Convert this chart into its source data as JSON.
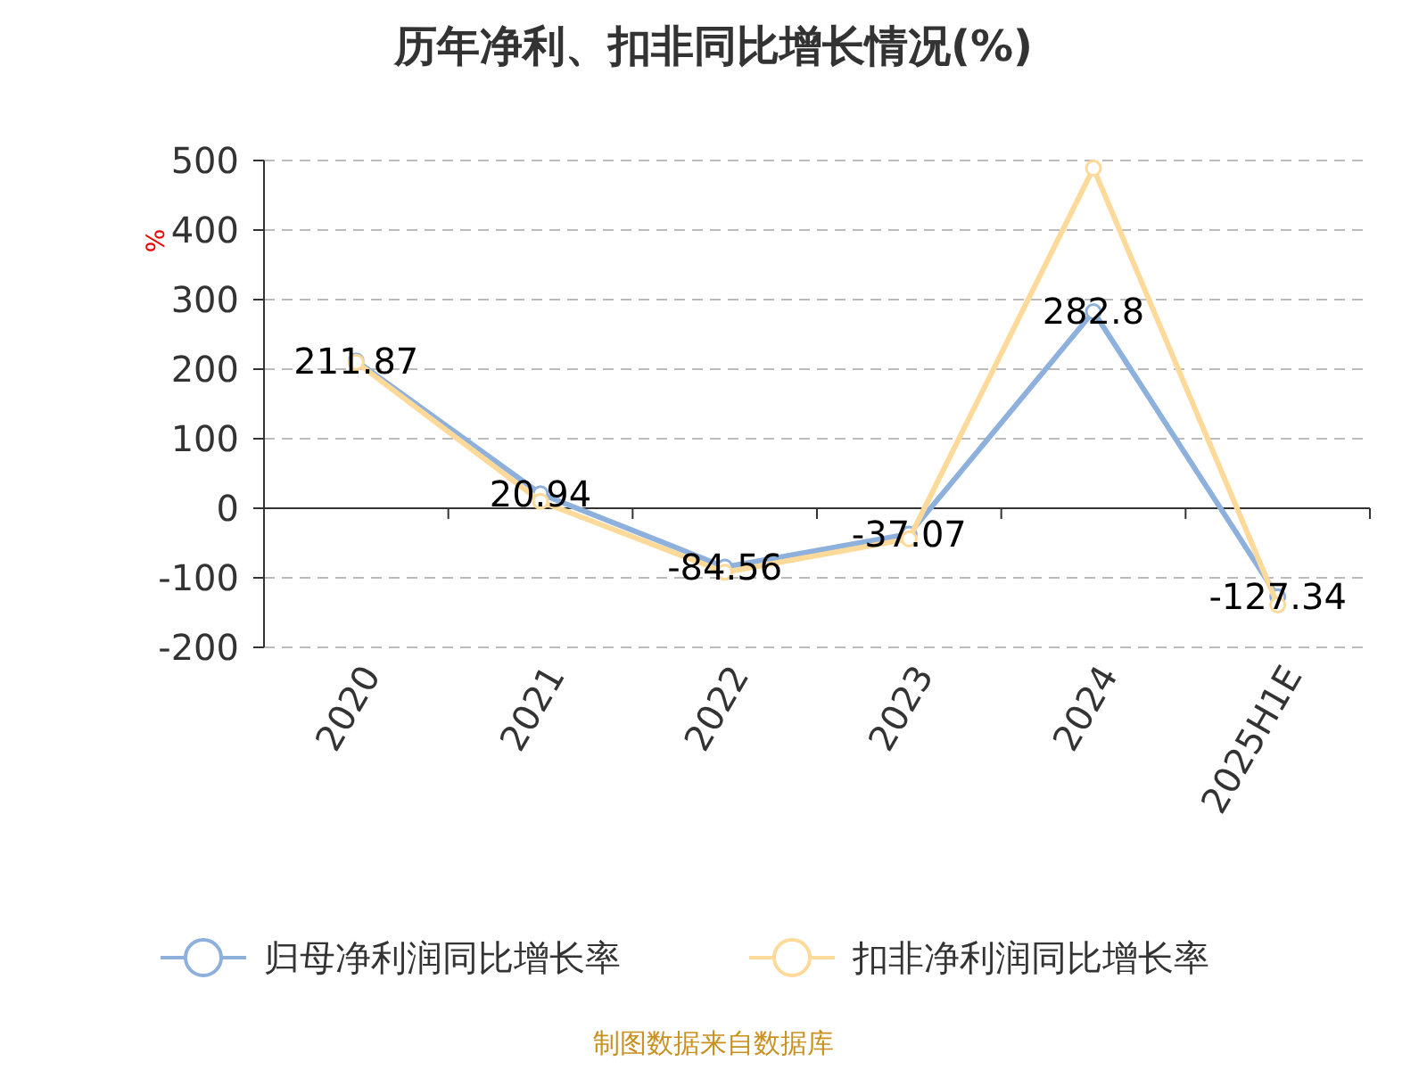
{
  "chart_data": {
    "type": "line",
    "title": "历年净利、扣非同比增长情况(%)",
    "ylabel": "%",
    "categories": [
      "2020",
      "2021",
      "2022",
      "2023",
      "2024",
      "2025H1E"
    ],
    "series": [
      {
        "name": "归母净利润同比增长率",
        "color": "#8eb0dc",
        "values": [
          211.87,
          20.94,
          -84.56,
          -37.07,
          282.8,
          -127.34
        ],
        "value_labels": [
          "211.87",
          "20.94",
          "-84.56",
          "-37.07",
          "282.8",
          "-127.34"
        ]
      },
      {
        "name": "扣非净利润同比增长率",
        "color": "#fdd99a",
        "values": [
          210,
          10,
          -92,
          -44,
          489,
          -139
        ]
      }
    ],
    "ylim": [
      -200,
      500
    ],
    "yticks": [
      -200,
      -100,
      0,
      100,
      200,
      300,
      400,
      500
    ],
    "grid": "y",
    "legend": "bottom",
    "marker": "circle",
    "line_style": "solid",
    "annotations": [
      "制图数据来自数据库"
    ]
  }
}
